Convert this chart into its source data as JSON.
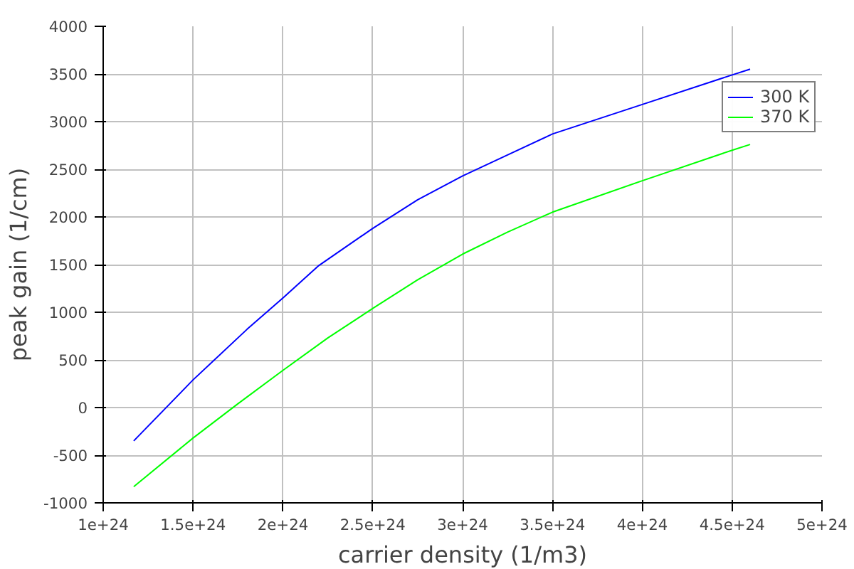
{
  "chart_data": {
    "type": "line",
    "xlabel": "carrier density (1/m3)",
    "ylabel": "peak gain (1/cm)",
    "xlim": [
      1e+24,
      5e+24
    ],
    "ylim": [
      -1000,
      4000
    ],
    "xticks": [
      {
        "value": 1e+24,
        "label": "1e+24"
      },
      {
        "value": 1.5e+24,
        "label": "1.5e+24"
      },
      {
        "value": 2e+24,
        "label": "2e+24"
      },
      {
        "value": 2.5e+24,
        "label": "2.5e+24"
      },
      {
        "value": 3e+24,
        "label": "3e+24"
      },
      {
        "value": 3.5e+24,
        "label": "3.5e+24"
      },
      {
        "value": 4e+24,
        "label": "4e+24"
      },
      {
        "value": 4.5e+24,
        "label": "4.5e+24"
      },
      {
        "value": 5e+24,
        "label": "5e+24"
      }
    ],
    "yticks": [
      -1000,
      -500,
      0,
      500,
      1000,
      1500,
      2000,
      2500,
      3000,
      3500,
      4000
    ],
    "grid": true,
    "legend": "top right",
    "series": [
      {
        "name": "300 K",
        "color": "#0000ff",
        "x": [
          1.17e+24,
          1.5e+24,
          1.8e+24,
          2e+24,
          2.2e+24,
          2.5e+24,
          2.75e+24,
          3e+24,
          3.25e+24,
          3.5e+24,
          4e+24,
          4.5e+24,
          4.6e+24
        ],
        "values": [
          -350,
          290,
          820,
          1150,
          1490,
          1880,
          2180,
          2430,
          2650,
          2870,
          3180,
          3490,
          3550
        ]
      },
      {
        "name": "370 K",
        "color": "#00ff00",
        "x": [
          1.17e+24,
          1.5e+24,
          1.75e+24,
          2e+24,
          2.25e+24,
          2.5e+24,
          2.75e+24,
          3e+24,
          3.25e+24,
          3.5e+24,
          4e+24,
          4.5e+24,
          4.6e+24
        ],
        "values": [
          -830,
          -320,
          40,
          390,
          730,
          1040,
          1340,
          1610,
          1840,
          2050,
          2380,
          2700,
          2760
        ]
      }
    ]
  }
}
